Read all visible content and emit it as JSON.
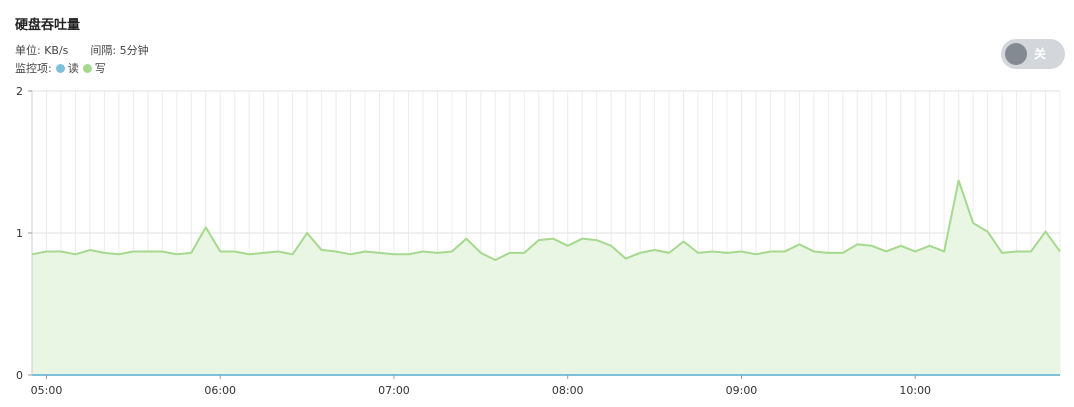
{
  "header": {
    "title": "硬盘吞吐量",
    "unit_text": "单位: KB/s",
    "interval_text": "间隔: 5分钟",
    "monitor_label": "监控项:"
  },
  "toggle": {
    "label": "关",
    "state": "off"
  },
  "colors": {
    "read": "#7cc0db",
    "write": "#a5d98e",
    "write_fill": "#eaf6e4",
    "grid": "#ececec"
  },
  "chart_data": {
    "type": "area",
    "title": "硬盘吞吐量",
    "unit": "KB/s",
    "x_tick_labels": [
      "05:00",
      "06:00",
      "07:00",
      "08:00",
      "09:00",
      "10:00"
    ],
    "y_tick_labels": [
      "0",
      "1",
      "2"
    ],
    "ylim": [
      0,
      2
    ],
    "xlim": [
      "04:55",
      "10:50"
    ],
    "grid": true,
    "series": [
      {
        "name": "读",
        "color": "#7cc0db",
        "values": [
          0,
          0,
          0,
          0,
          0,
          0,
          0,
          0,
          0,
          0,
          0,
          0,
          0,
          0,
          0,
          0,
          0,
          0,
          0,
          0,
          0,
          0,
          0,
          0,
          0,
          0,
          0,
          0,
          0,
          0,
          0,
          0,
          0,
          0,
          0,
          0,
          0,
          0,
          0,
          0,
          0,
          0,
          0,
          0,
          0,
          0,
          0,
          0,
          0,
          0,
          0,
          0,
          0,
          0,
          0,
          0,
          0,
          0,
          0,
          0,
          0,
          0,
          0,
          0,
          0,
          0,
          0,
          0,
          0,
          0,
          0,
          0
        ]
      },
      {
        "name": "写",
        "color": "#a5d98e",
        "values": [
          0.85,
          0.87,
          0.87,
          0.85,
          0.88,
          0.86,
          0.85,
          0.87,
          0.87,
          0.87,
          0.85,
          0.86,
          1.04,
          0.87,
          0.87,
          0.85,
          0.86,
          0.87,
          0.85,
          1.0,
          0.88,
          0.87,
          0.85,
          0.87,
          0.86,
          0.85,
          0.85,
          0.87,
          0.86,
          0.87,
          0.96,
          0.86,
          0.81,
          0.86,
          0.86,
          0.95,
          0.96,
          0.91,
          0.96,
          0.95,
          0.91,
          0.82,
          0.86,
          0.88,
          0.86,
          0.94,
          0.86,
          0.87,
          0.86,
          0.87,
          0.85,
          0.87,
          0.87,
          0.92,
          0.87,
          0.86,
          0.86,
          0.92,
          0.91,
          0.87,
          0.91,
          0.87,
          0.91,
          0.87,
          1.37,
          1.07,
          1.01,
          0.86,
          0.87,
          0.87,
          1.01,
          0.87
        ]
      }
    ]
  }
}
